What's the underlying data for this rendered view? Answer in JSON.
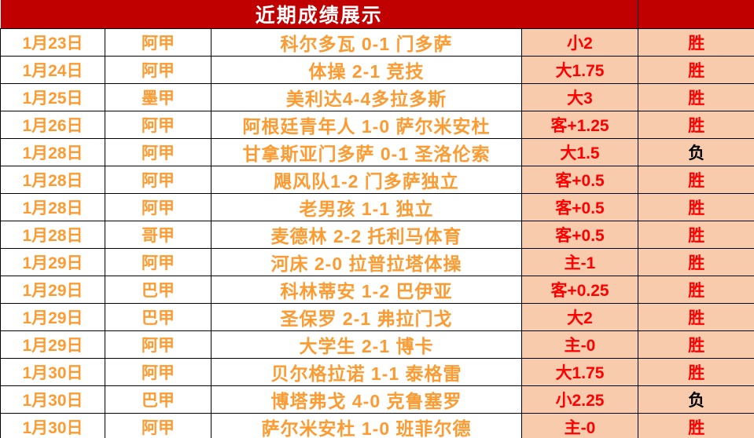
{
  "header": {
    "title": "近期成绩展示"
  },
  "legend": {
    "win_label": "胜",
    "loss_label": "负"
  },
  "colors": {
    "header_bg": "#C00000",
    "header_text": "#FFFFFF",
    "orange_text": "#FB9B32",
    "red_text": "#FF0000",
    "loss_text": "#000000",
    "salmon_bg": "#F8CBAD",
    "white_bg": "#FFFFFF",
    "border": "#000000"
  },
  "columns": [
    "date",
    "league",
    "match",
    "handicap",
    "result"
  ],
  "rows": [
    {
      "date": "1月23日",
      "league": "阿甲",
      "match": "科尔多瓦 0-1 门多萨",
      "handicap": "小2",
      "result": "胜"
    },
    {
      "date": "1月24日",
      "league": "阿甲",
      "match": "体操 2-1 竞技",
      "handicap": "大1.75",
      "result": "胜"
    },
    {
      "date": "1月25日",
      "league": "墨甲",
      "match": "美利达4-4多拉多斯",
      "handicap": "大3",
      "result": "胜"
    },
    {
      "date": "1月26日",
      "league": "阿甲",
      "match": "阿根廷青年人 1-0 萨尔米安杜",
      "handicap": "客+1.25",
      "result": "胜"
    },
    {
      "date": "1月28日",
      "league": "阿甲",
      "match": "甘拿斯亚门多萨 0-1 圣洛伦索",
      "handicap": "大1.5",
      "result": "负"
    },
    {
      "date": "1月28日",
      "league": "阿甲",
      "match": "飓风队1-2 门多萨独立",
      "handicap": "客+0.5",
      "result": "胜"
    },
    {
      "date": "1月28日",
      "league": "阿甲",
      "match": "老男孩 1-1 独立",
      "handicap": "客+0.5",
      "result": "胜"
    },
    {
      "date": "1月28日",
      "league": "哥甲",
      "match": "麦德林 2-2 托利马体育",
      "handicap": "客+0.5",
      "result": "胜"
    },
    {
      "date": "1月29日",
      "league": "阿甲",
      "match": "河床 2-0 拉普拉塔体操",
      "handicap": "主-1",
      "result": "胜"
    },
    {
      "date": "1月29日",
      "league": "巴甲",
      "match": "科林蒂安 1-2 巴伊亚",
      "handicap": "客+0.25",
      "result": "胜"
    },
    {
      "date": "1月29日",
      "league": "巴甲",
      "match": "圣保罗 2-1 弗拉门戈",
      "handicap": "大2",
      "result": "胜"
    },
    {
      "date": "1月29日",
      "league": "阿甲",
      "match": "大学生 2-1 博卡",
      "handicap": "主-0",
      "result": "胜"
    },
    {
      "date": "1月30日",
      "league": "阿甲",
      "match": "贝尔格拉诺 1-1 泰格雷",
      "handicap": "大1.75",
      "result": "胜"
    },
    {
      "date": "1月30日",
      "league": "巴甲",
      "match": "博塔弗戈 4-0 克鲁塞罗",
      "handicap": "小2.25",
      "result": "负"
    },
    {
      "date": "1月30日",
      "league": "阿甲",
      "match": "萨尔米安杜 1-0 班菲尔德",
      "handicap": "主-0",
      "result": "胜"
    }
  ]
}
